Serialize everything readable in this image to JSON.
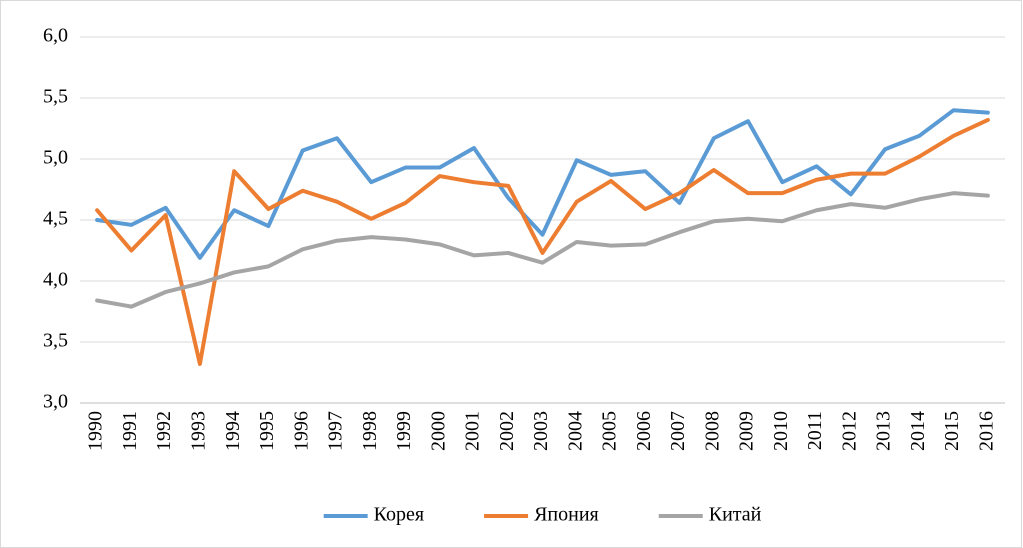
{
  "chart_data": {
    "type": "line",
    "categories": [
      "1990",
      "1991",
      "1992",
      "1993",
      "1994",
      "1995",
      "1996",
      "1997",
      "1998",
      "1999",
      "2000",
      "2001",
      "2002",
      "2003",
      "2004",
      "2005",
      "2006",
      "2007",
      "2008",
      "2009",
      "2010",
      "2011",
      "2012",
      "2013",
      "2014",
      "2015",
      "2016"
    ],
    "series": [
      {
        "name": "Корея",
        "color": "#5b9bd5",
        "values": [
          4.5,
          4.46,
          4.6,
          4.19,
          4.58,
          4.45,
          5.07,
          5.17,
          4.81,
          4.93,
          4.93,
          5.09,
          4.68,
          4.38,
          4.99,
          4.87,
          4.9,
          4.64,
          5.17,
          5.31,
          4.81,
          4.94,
          4.71,
          5.08,
          5.19,
          5.4,
          5.38
        ]
      },
      {
        "name": "Япония",
        "color": "#ed7d31",
        "values": [
          4.58,
          4.25,
          4.54,
          3.32,
          4.9,
          4.59,
          4.74,
          4.65,
          4.51,
          4.64,
          4.86,
          4.81,
          4.78,
          4.23,
          4.65,
          4.82,
          4.59,
          4.72,
          4.91,
          4.72,
          4.72,
          4.83,
          4.88,
          4.88,
          5.02,
          5.19,
          5.32
        ]
      },
      {
        "name": "Китай",
        "color": "#a5a5a5",
        "values": [
          3.84,
          3.79,
          3.91,
          3.98,
          4.07,
          4.12,
          4.26,
          4.33,
          4.36,
          4.34,
          4.3,
          4.21,
          4.23,
          4.15,
          4.32,
          4.29,
          4.3,
          4.4,
          4.49,
          4.51,
          4.49,
          4.58,
          4.63,
          4.6,
          4.67,
          4.72,
          4.7
        ]
      }
    ],
    "ylim": [
      3,
      6
    ],
    "yticks": [
      {
        "value": 3,
        "label": "3,0"
      },
      {
        "value": 3.5,
        "label": "3,5"
      },
      {
        "value": 4,
        "label": "4,0"
      },
      {
        "value": 4.5,
        "label": "4,5"
      },
      {
        "value": 5,
        "label": "5,0"
      },
      {
        "value": 5.5,
        "label": "5,5"
      },
      {
        "value": 6,
        "label": "6,0"
      }
    ],
    "grid": true,
    "legend": "bottom"
  }
}
